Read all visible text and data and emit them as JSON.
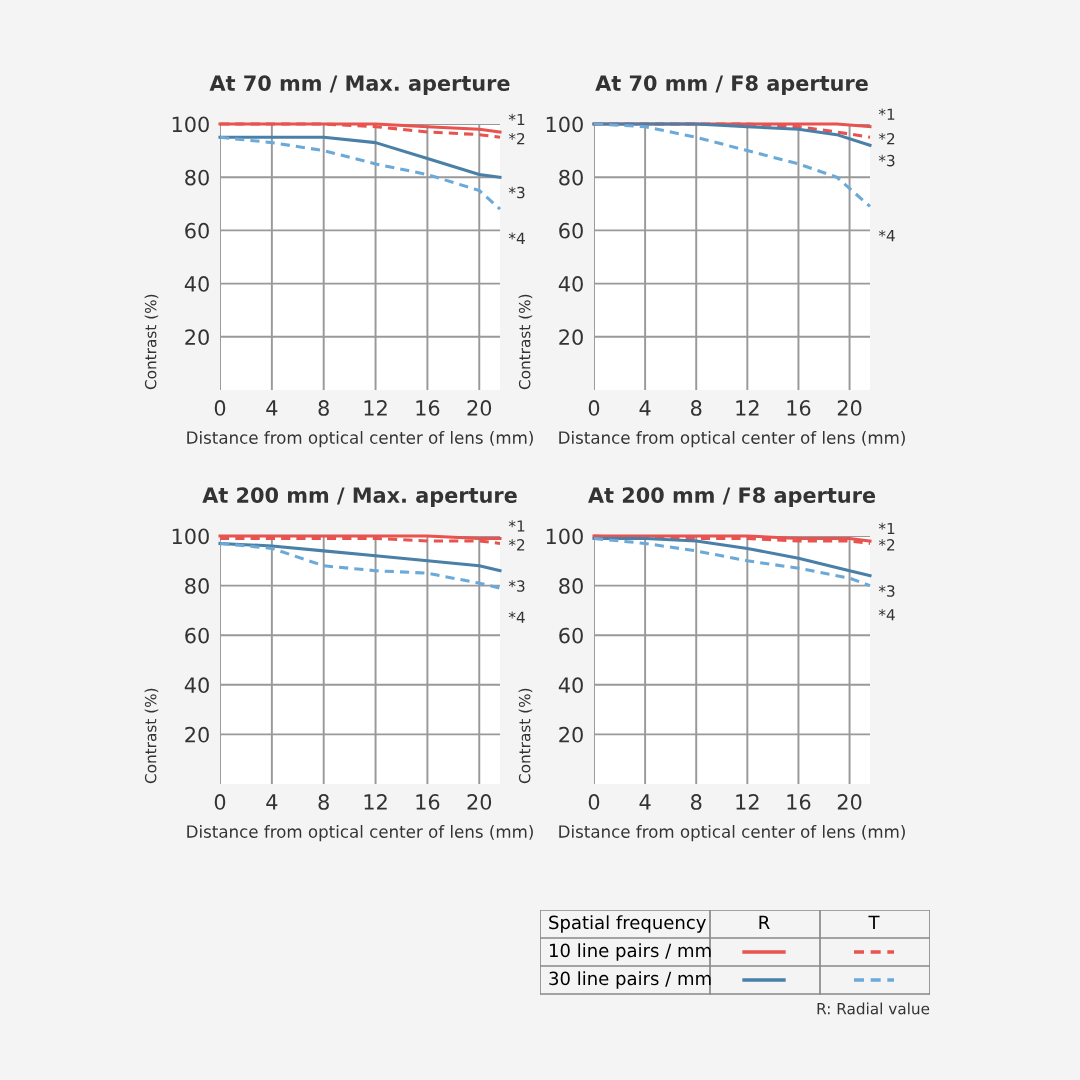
{
  "chart_data": [
    {
      "type": "line",
      "title": "At 70 mm / Max. aperture",
      "xlabel": "Distance from optical center of lens (mm)",
      "ylabel": "Contrast (%)",
      "xlim": [
        0,
        21.6
      ],
      "ylim": [
        0,
        100
      ],
      "xticks": [
        0,
        4,
        8,
        12,
        16,
        20
      ],
      "yticks": [
        20,
        40,
        60,
        80,
        100
      ],
      "grid": true,
      "x": [
        0,
        4,
        8,
        12,
        16,
        20,
        21.6
      ],
      "series": [
        {
          "name": "*1",
          "color": "#e8534f",
          "line_style": "solid",
          "values": [
            100,
            100,
            100,
            100,
            99,
            98,
            97
          ]
        },
        {
          "name": "*2",
          "color": "#e8534f",
          "line_style": "dashed",
          "values": [
            100,
            100,
            100,
            99,
            97,
            96,
            95
          ]
        },
        {
          "name": "*3",
          "color": "#4a7fa8",
          "line_style": "solid",
          "values": [
            95,
            95,
            95,
            93,
            87,
            81,
            80
          ]
        },
        {
          "name": "*4",
          "color": "#6aa9d8",
          "line_style": "dashed",
          "values": [
            95,
            93,
            90,
            85,
            81,
            75,
            68
          ]
        }
      ]
    },
    {
      "type": "line",
      "title": "At 70 mm / F8 aperture",
      "xlabel": "Distance from optical center of lens (mm)",
      "ylabel": "Contrast (%)",
      "xlim": [
        0,
        21.6
      ],
      "ylim": [
        0,
        100
      ],
      "xticks": [
        0,
        4,
        8,
        12,
        16,
        20
      ],
      "yticks": [
        20,
        40,
        60,
        80,
        100
      ],
      "grid": true,
      "x": [
        0,
        4,
        8,
        12,
        16,
        19,
        21.6
      ],
      "series": [
        {
          "name": "*1",
          "color": "#e8534f",
          "line_style": "solid",
          "values": [
            100,
            100,
            100,
            100,
            100,
            100,
            99
          ]
        },
        {
          "name": "*2",
          "color": "#e8534f",
          "line_style": "dashed",
          "values": [
            100,
            100,
            100,
            100,
            99,
            97,
            95
          ]
        },
        {
          "name": "*3",
          "color": "#4a7fa8",
          "line_style": "solid",
          "values": [
            100,
            100,
            100,
            99,
            98,
            96,
            92
          ]
        },
        {
          "name": "*4",
          "color": "#6aa9d8",
          "line_style": "dashed",
          "values": [
            100,
            99,
            95,
            90,
            85,
            80,
            69
          ]
        }
      ]
    },
    {
      "type": "line",
      "title": "At 200 mm / Max. aperture",
      "xlabel": "Distance from optical center of lens (mm)",
      "ylabel": "Contrast (%)",
      "xlim": [
        0,
        21.6
      ],
      "ylim": [
        0,
        100
      ],
      "xticks": [
        0,
        4,
        8,
        12,
        16,
        20
      ],
      "yticks": [
        20,
        40,
        60,
        80,
        100
      ],
      "grid": true,
      "x": [
        0,
        4,
        8,
        12,
        16,
        20,
        21.6
      ],
      "series": [
        {
          "name": "*1",
          "color": "#e8534f",
          "line_style": "solid",
          "values": [
            100,
            100,
            100,
            100,
            100,
            99,
            99
          ]
        },
        {
          "name": "*2",
          "color": "#e8534f",
          "line_style": "dashed",
          "values": [
            99,
            99,
            99,
            99,
            98,
            98,
            97
          ]
        },
        {
          "name": "*3",
          "color": "#4a7fa8",
          "line_style": "solid",
          "values": [
            97,
            96,
            94,
            92,
            90,
            88,
            86
          ]
        },
        {
          "name": "*4",
          "color": "#6aa9d8",
          "line_style": "dashed",
          "values": [
            97,
            95,
            88,
            86,
            85,
            81,
            79
          ]
        }
      ]
    },
    {
      "type": "line",
      "title": "At 200 mm / F8 aperture",
      "xlabel": "Distance from optical center of lens (mm)",
      "ylabel": "Contrast (%)",
      "xlim": [
        0,
        21.6
      ],
      "ylim": [
        0,
        100
      ],
      "xticks": [
        0,
        4,
        8,
        12,
        16,
        20
      ],
      "yticks": [
        20,
        40,
        60,
        80,
        100
      ],
      "grid": true,
      "x": [
        0,
        4,
        8,
        12,
        16,
        20,
        21.6
      ],
      "series": [
        {
          "name": "*1",
          "color": "#e8534f",
          "line_style": "solid",
          "values": [
            100,
            100,
            100,
            100,
            99,
            99,
            98
          ]
        },
        {
          "name": "*2",
          "color": "#e8534f",
          "line_style": "dashed",
          "values": [
            100,
            99,
            99,
            99,
            98,
            98,
            97
          ]
        },
        {
          "name": "*3",
          "color": "#4a7fa8",
          "line_style": "solid",
          "values": [
            99,
            99,
            98,
            95,
            91,
            86,
            84
          ]
        },
        {
          "name": "*4",
          "color": "#6aa9d8",
          "line_style": "dashed",
          "values": [
            99,
            97,
            94,
            90,
            87,
            83,
            80
          ]
        }
      ]
    },
    {
      "type": "other",
      "annotations": [
        "Spatial frequency",
        "R",
        "T",
        "10 line pairs / mm",
        "30 line pairs / mm",
        "R: Radial value"
      ]
    }
  ]
}
